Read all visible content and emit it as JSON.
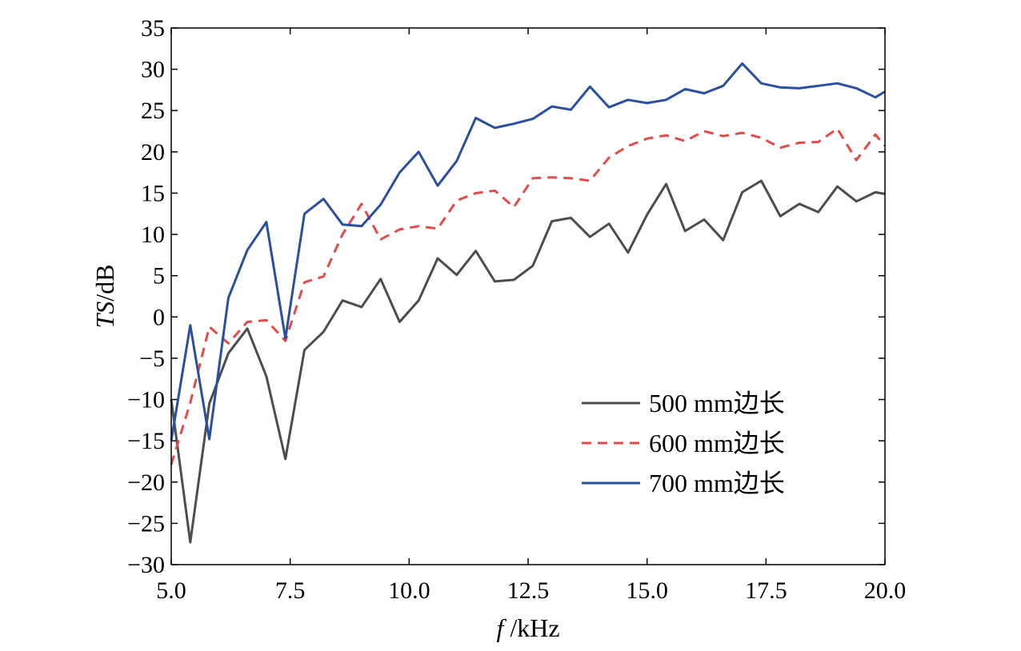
{
  "chart_data": {
    "type": "line",
    "xlabel_italic": "f",
    "xlabel_unit": " /kHz",
    "ylabel_italic": "TS",
    "ylabel_unit": "/dB",
    "xlim": [
      5.0,
      20.0
    ],
    "ylim": [
      -30,
      35
    ],
    "xticks": [
      5.0,
      7.5,
      10.0,
      12.5,
      15.0,
      17.5,
      20.0
    ],
    "xtick_labels": [
      "5.0",
      "7.5",
      "10.0",
      "12.5",
      "15.0",
      "17.5",
      "20.0"
    ],
    "yticks": [
      -30,
      -25,
      -20,
      -15,
      -10,
      -5,
      0,
      5,
      10,
      15,
      20,
      25,
      30,
      35
    ],
    "ytick_labels": [
      "−30",
      "−25",
      "−20",
      "−15",
      "−10",
      "−5",
      "0",
      "5",
      "10",
      "15",
      "20",
      "25",
      "30",
      "35"
    ],
    "legend_position": "lower-right",
    "x": [
      5.0,
      5.4,
      5.8,
      6.2,
      6.6,
      7.0,
      7.4,
      7.8,
      8.2,
      8.6,
      9.0,
      9.4,
      9.8,
      10.2,
      10.6,
      11.0,
      11.4,
      11.8,
      12.2,
      12.6,
      13.0,
      13.4,
      13.8,
      14.2,
      14.6,
      15.0,
      15.4,
      15.8,
      16.2,
      16.6,
      17.0,
      17.4,
      17.8,
      18.2,
      18.6,
      19.0,
      19.4,
      19.8,
      20.0
    ],
    "series": [
      {
        "name": "500 mm边长",
        "color": "#4d4d4d",
        "dash": "solid",
        "values": [
          -10.0,
          -27.3,
          -10.5,
          -4.4,
          -1.4,
          -7.2,
          -17.2,
          -4.0,
          -1.8,
          2.0,
          1.2,
          4.6,
          -0.6,
          2.0,
          7.1,
          5.1,
          8.0,
          4.3,
          4.5,
          6.2,
          11.6,
          12.0,
          9.7,
          11.3,
          7.8,
          12.4,
          16.1,
          10.4,
          11.8,
          9.3,
          15.1,
          16.5,
          12.2,
          13.7,
          12.7,
          15.8,
          14.0,
          15.1,
          14.9
        ]
      },
      {
        "name": "600 mm边长",
        "color": "#e04b4b",
        "dash": "dashed",
        "values": [
          -17.9,
          -10.4,
          -1.2,
          -3.2,
          -0.6,
          -0.4,
          -2.9,
          4.2,
          4.9,
          10.0,
          13.7,
          9.4,
          10.6,
          11.0,
          10.7,
          14.1,
          15.0,
          15.3,
          13.3,
          16.8,
          16.9,
          16.8,
          16.5,
          19.3,
          20.7,
          21.6,
          22.0,
          21.3,
          22.5,
          21.9,
          22.3,
          21.7,
          20.5,
          21.1,
          21.2,
          22.8,
          19.0,
          22.1,
          20.7
        ]
      },
      {
        "name": "700 mm边长",
        "color": "#2b4fa0",
        "dash": "solid",
        "values": [
          -15.0,
          -1.0,
          -14.8,
          2.3,
          8.1,
          11.5,
          -2.6,
          12.5,
          14.3,
          11.2,
          11.0,
          13.6,
          17.5,
          20.0,
          15.9,
          18.9,
          24.1,
          22.9,
          23.4,
          24.0,
          25.5,
          25.1,
          27.9,
          25.4,
          26.3,
          25.9,
          26.3,
          27.6,
          27.1,
          28.0,
          30.7,
          28.3,
          27.8,
          27.7,
          28.0,
          28.3,
          27.7,
          26.6,
          27.3
        ]
      }
    ]
  }
}
